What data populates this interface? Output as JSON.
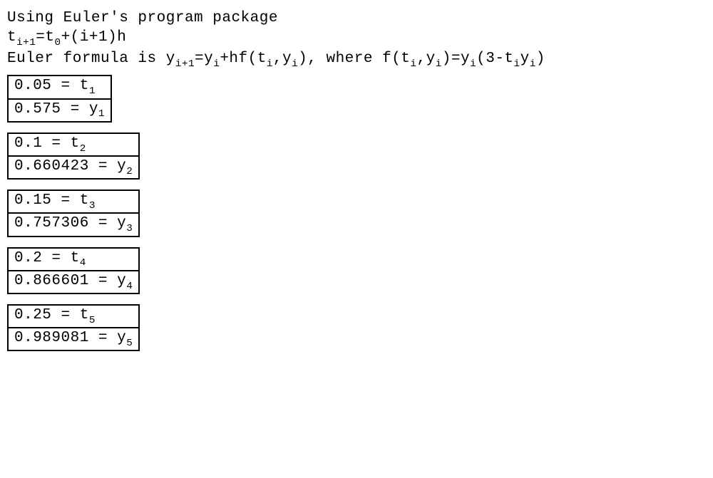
{
  "header": {
    "line1_text": "Using Euler's program package",
    "line2_html": "t<sub>i+1</sub>=t<sub>0</sub>+(i+1)h",
    "line3_html": "Euler formula is y<sub>i+1</sub>=y<sub>i</sub>+hf(t<sub>i</sub>,y<sub>i</sub>), where f(t<sub>i</sub>,y<sub>i</sub>)=y<sub>i</sub>(3-t<sub>i</sub>y<sub>i</sub>)"
  },
  "results": {
    "border_color": "#000000",
    "background": "#ffffff",
    "font_family": "Consolas, Menlo, Courier New, monospace",
    "font_size_pt": 16,
    "boxes": [
      {
        "t_val": "0.05",
        "t_label_html": "t<sub>1</sub>",
        "y_val": "0.575",
        "y_label_html": "y<sub>1</sub>",
        "first": true
      },
      {
        "t_val": "0.1",
        "t_label_html": "t<sub>2</sub>",
        "y_val": "0.660423",
        "y_label_html": "y<sub>2</sub>",
        "first": false
      },
      {
        "t_val": "0.15",
        "t_label_html": "t<sub>3</sub>",
        "y_val": "0.757306",
        "y_label_html": "y<sub>3</sub>",
        "first": false
      },
      {
        "t_val": "0.2",
        "t_label_html": "t<sub>4</sub>",
        "y_val": "0.866601",
        "y_label_html": "y<sub>4</sub>",
        "first": false
      },
      {
        "t_val": "0.25",
        "t_label_html": "t<sub>5</sub>",
        "y_val": "0.989081",
        "y_label_html": "y<sub>5</sub>",
        "first": false
      }
    ]
  }
}
